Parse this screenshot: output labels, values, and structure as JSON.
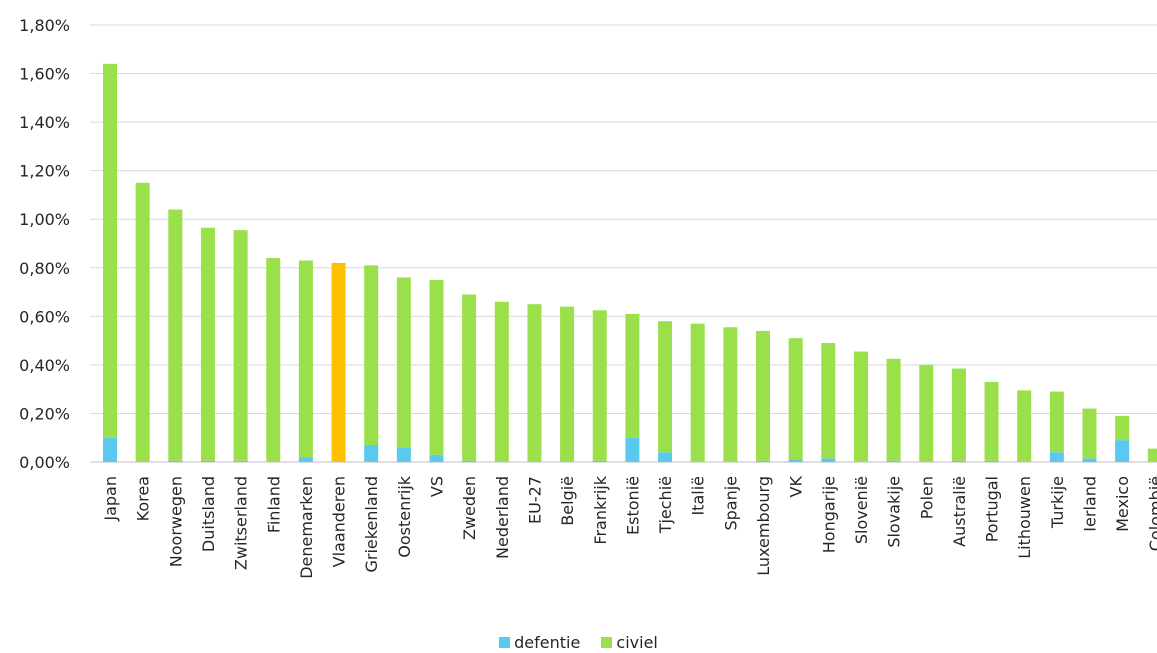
{
  "chart_data": {
    "type": "bar",
    "stacked": true,
    "categories": [
      "Japan",
      "Korea",
      "Noorwegen",
      "Duitsland",
      "Zwitserland",
      "Finland",
      "Denemarken",
      "Vlaanderen",
      "Griekenland",
      "Oostenrijk",
      "VS",
      "Zweden",
      "Nederland",
      "EU-27",
      "België",
      "Frankrijk",
      "Estonië",
      "Tjechië",
      "Italië",
      "Spanje",
      "Luxembourg",
      "VK",
      "Hongarije",
      "Slovenië",
      "Slovakije",
      "Polen",
      "Australië",
      "Portugal",
      "Lithouwen",
      "Turkije",
      "Ierland",
      "Mexico",
      "Colombië"
    ],
    "series": [
      {
        "name": "defentie",
        "color": "#5bc8f0",
        "values": [
          0.1,
          0.0,
          0.005,
          0.005,
          0.005,
          0.0,
          0.02,
          0.0,
          0.07,
          0.06,
          0.03,
          0.005,
          0.0,
          0.0,
          0.0,
          0.005,
          0.1,
          0.04,
          0.0,
          0.0,
          0.005,
          0.01,
          0.015,
          0.0,
          0.005,
          0.0,
          0.005,
          0.005,
          0.0,
          0.04,
          0.015,
          0.09,
          0.0
        ]
      },
      {
        "name": "civiel",
        "color": "#99e04a",
        "values": [
          1.54,
          1.15,
          1.035,
          0.96,
          0.95,
          0.84,
          0.81,
          0.82,
          0.74,
          0.7,
          0.72,
          0.685,
          0.66,
          0.65,
          0.64,
          0.62,
          0.51,
          0.54,
          0.57,
          0.555,
          0.535,
          0.5,
          0.475,
          0.455,
          0.42,
          0.4,
          0.38,
          0.325,
          0.295,
          0.25,
          0.205,
          0.1,
          0.055
        ]
      }
    ],
    "highlight": {
      "category": "Vlaanderen",
      "color": "#ffc000"
    },
    "y_ticks": [
      "0,00%",
      "0,20%",
      "0,40%",
      "0,60%",
      "0,80%",
      "1,00%",
      "1,20%",
      "1,40%",
      "1,60%",
      "1,80%"
    ],
    "ylim": [
      0,
      1.8
    ],
    "y_step": 0.2,
    "grid": true,
    "legend_position": "bottom",
    "title": "",
    "xlabel": "",
    "ylabel": ""
  },
  "legend": {
    "items": [
      {
        "label": "defentie",
        "color": "#5bc8f0"
      },
      {
        "label": "civiel",
        "color": "#99e04a"
      }
    ]
  }
}
